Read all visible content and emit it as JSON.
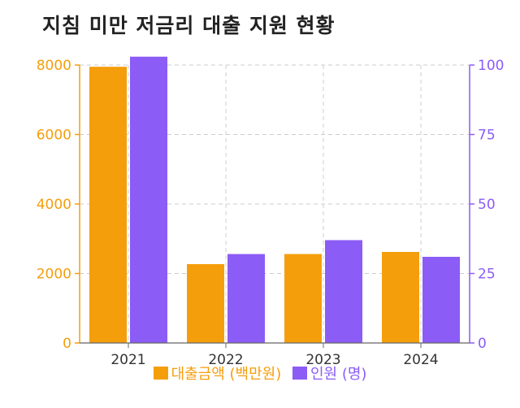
{
  "chart_data": {
    "type": "bar",
    "title": "지침 미만 저금리 대출 지원 현황",
    "categories": [
      "2021",
      "2022",
      "2023",
      "2024"
    ],
    "series": [
      {
        "name": "대출금액 (백만원)",
        "values": [
          7950,
          2270,
          2560,
          2620
        ],
        "color": "#F59E0B",
        "axis": "left"
      },
      {
        "name": "인원 (명)",
        "values": [
          103,
          32,
          37,
          31
        ],
        "color": "#8B5CF6",
        "axis": "right"
      }
    ],
    "y_left": {
      "min": 0,
      "max": 8000,
      "ticks": [
        "0",
        "2000",
        "4000",
        "6000",
        "8000"
      ],
      "color": "#F59E0B"
    },
    "y_right": {
      "min": 0,
      "max": 100,
      "ticks": [
        "0",
        "25",
        "50",
        "75",
        "100"
      ],
      "color": "#8B5CF6"
    },
    "grid": true,
    "legend_position": "bottom"
  }
}
